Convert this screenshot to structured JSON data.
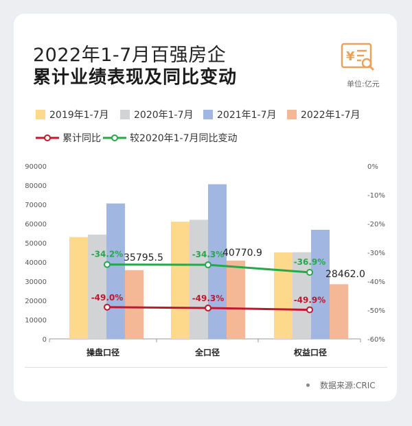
{
  "header": {
    "title_line1": "2022年1-7月百强房企",
    "title_line2": "累计业绩表现及同比变动",
    "unit": "单位:亿元"
  },
  "source": "数据来源:CRIC",
  "colors": {
    "s2019": "#fcd98b",
    "s2020": "#d2d3d5",
    "s2021": "#a1b6e0",
    "s2022": "#f4b896",
    "red_line": "#c0172f",
    "green_line": "#23a84a",
    "logo": "#e9a15b"
  },
  "chart_data": {
    "type": "bar",
    "categories": [
      "操盘口径",
      "全口径",
      "权益口径"
    ],
    "series": [
      {
        "name": "2019年1-7月",
        "values": [
          53000,
          61000,
          45000
        ]
      },
      {
        "name": "2020年1-7月",
        "values": [
          54300,
          62000,
          45100
        ]
      },
      {
        "name": "2021年1-7月",
        "values": [
          70500,
          80500,
          56800
        ]
      },
      {
        "name": "2022年1-7月",
        "values": [
          35795.5,
          40770.9,
          28462.0
        ]
      }
    ],
    "bar_labels": [
      "35795.5",
      "40770.9",
      "28462.0"
    ],
    "ylim": [
      0,
      90000
    ],
    "yticks": [
      "0",
      "10000",
      "20000",
      "30000",
      "40000",
      "50000",
      "60000",
      "70000",
      "80000",
      "90000"
    ],
    "y2lim": [
      -60,
      0
    ],
    "y2ticks": [
      "0%",
      "-10%",
      "-20%",
      "-30%",
      "-40%",
      "-50%",
      "-60%"
    ],
    "lines": [
      {
        "name": "累计同比",
        "values": [
          -49.0,
          -49.3,
          -49.9
        ],
        "labels": [
          "-49.0%",
          "-49.3%",
          "-49.9%"
        ]
      },
      {
        "name": "较2020年1-7月同比变动",
        "values": [
          -34.2,
          -34.3,
          -36.9
        ],
        "labels": [
          "-34.2%",
          "-34.3%",
          "-36.9%"
        ]
      }
    ]
  }
}
